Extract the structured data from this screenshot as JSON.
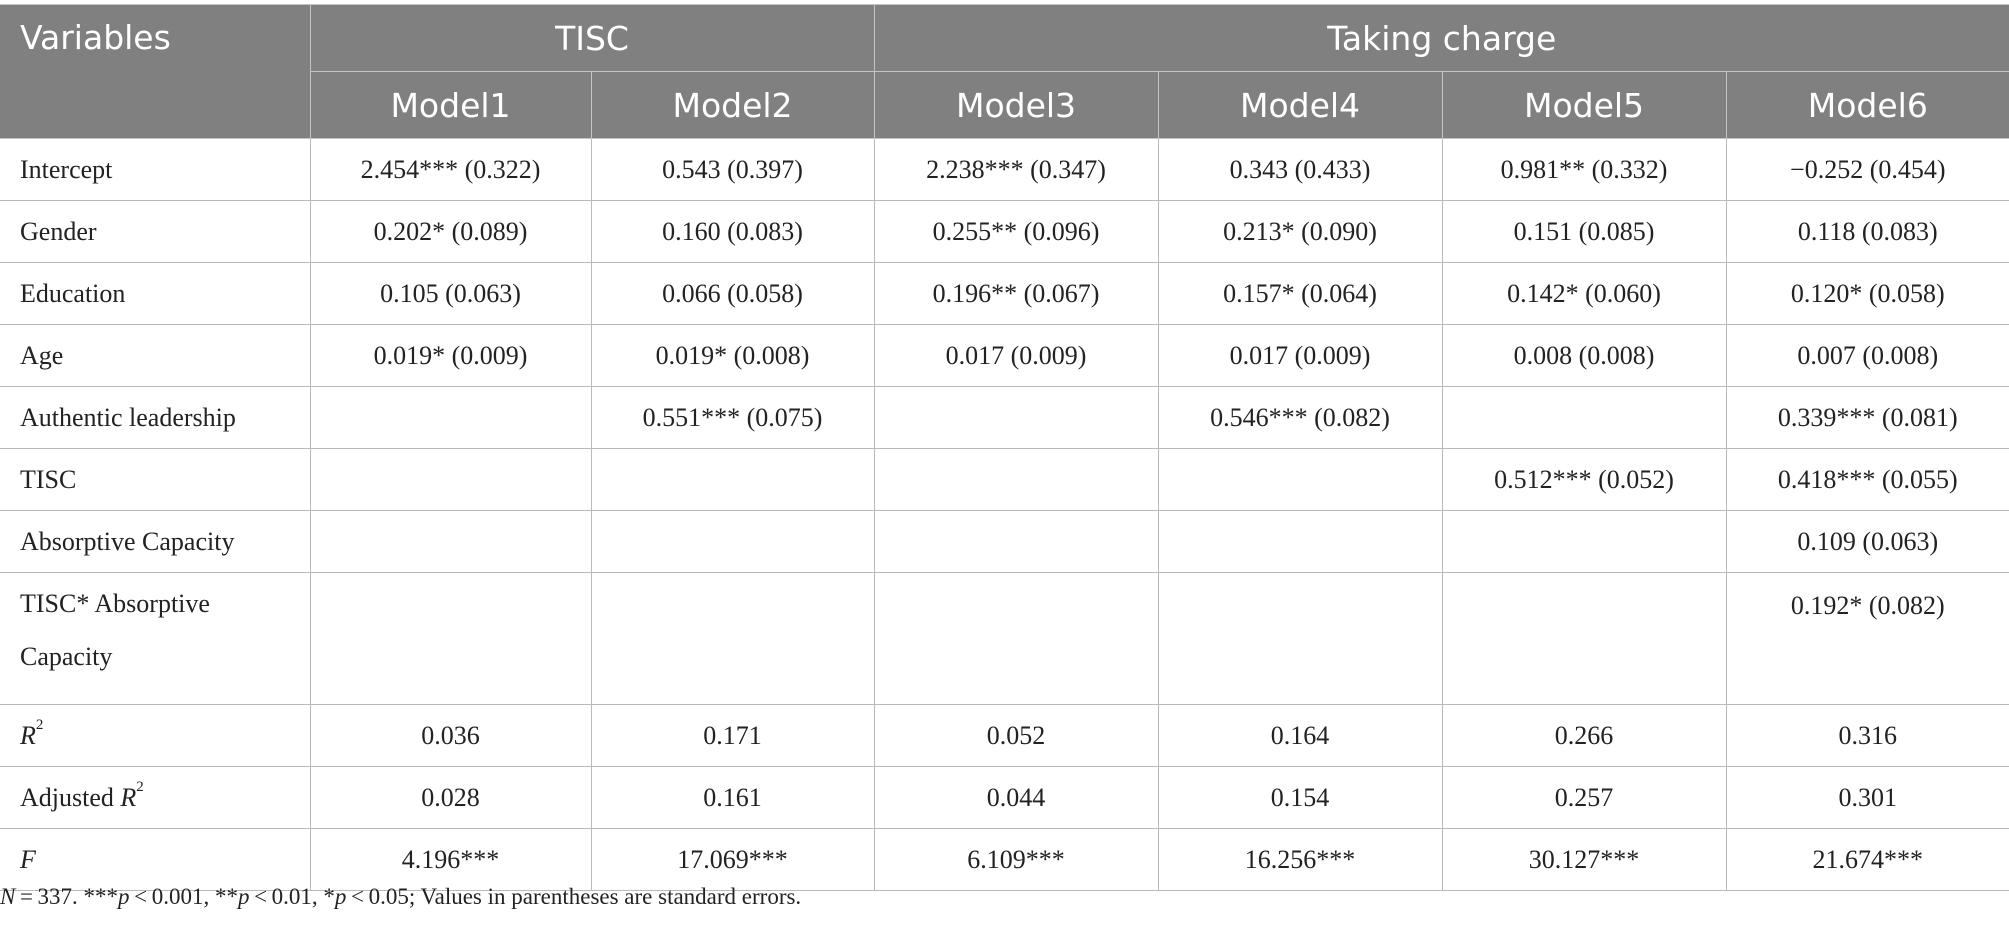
{
  "header": {
    "variables": "Variables",
    "group_tisc": "TISC",
    "group_taking_charge": "Taking charge",
    "models": [
      "Model1",
      "Model2",
      "Model3",
      "Model4",
      "Model5",
      "Model6"
    ]
  },
  "rows": [
    {
      "label": "Intercept",
      "cells": [
        "2.454*** (0.322)",
        "0.543 (0.397)",
        "2.238*** (0.347)",
        "0.343 (0.433)",
        "0.981** (0.332)",
        "−0.252 (0.454)"
      ]
    },
    {
      "label": "Gender",
      "cells": [
        "0.202* (0.089)",
        "0.160 (0.083)",
        "0.255** (0.096)",
        "0.213* (0.090)",
        "0.151 (0.085)",
        "0.118 (0.083)"
      ]
    },
    {
      "label": "Education",
      "cells": [
        "0.105 (0.063)",
        "0.066 (0.058)",
        "0.196** (0.067)",
        "0.157* (0.064)",
        "0.142* (0.060)",
        "0.120* (0.058)"
      ]
    },
    {
      "label": "Age",
      "cells": [
        "0.019* (0.009)",
        "0.019* (0.008)",
        "0.017 (0.009)",
        "0.017 (0.009)",
        "0.008 (0.008)",
        "0.007 (0.008)"
      ]
    },
    {
      "label": "Authentic leadership",
      "cells": [
        "",
        "0.551*** (0.075)",
        "",
        "0.546*** (0.082)",
        "",
        "0.339*** (0.081)"
      ]
    },
    {
      "label": "TISC",
      "cells": [
        "",
        "",
        "",
        "",
        "0.512*** (0.052)",
        "0.418*** (0.055)"
      ]
    },
    {
      "label": "Absorptive Capacity",
      "cells": [
        "",
        "",
        "",
        "",
        "",
        "0.109 (0.063)"
      ]
    },
    {
      "label_line1": "TISC* Absorptive",
      "label_line2": "Capacity",
      "cells": [
        "",
        "",
        "",
        "",
        "",
        "0.192* (0.082)"
      ]
    }
  ],
  "stats": {
    "r2": {
      "label": "R",
      "sup": "2",
      "cells": [
        "0.036",
        "0.171",
        "0.052",
        "0.164",
        "0.266",
        "0.316"
      ]
    },
    "adj_r2": {
      "label_prefix": "Adjusted ",
      "label": "R",
      "sup": "2",
      "cells": [
        "0.028",
        "0.161",
        "0.044",
        "0.154",
        "0.257",
        "0.301"
      ]
    },
    "f": {
      "label": "F",
      "cells": [
        "4.196***",
        "17.069***",
        "6.109***",
        "16.256***",
        "30.127***",
        "21.674***"
      ]
    }
  },
  "note": {
    "n_label": "N",
    "n_value": " = 337. ***",
    "p1": "p",
    "p1_rest": " < 0.001, **",
    "p2": "p",
    "p2_rest": " < 0.01, *",
    "p3": "p",
    "p3_rest": " < 0.05; Values in parentheses are standard errors."
  }
}
